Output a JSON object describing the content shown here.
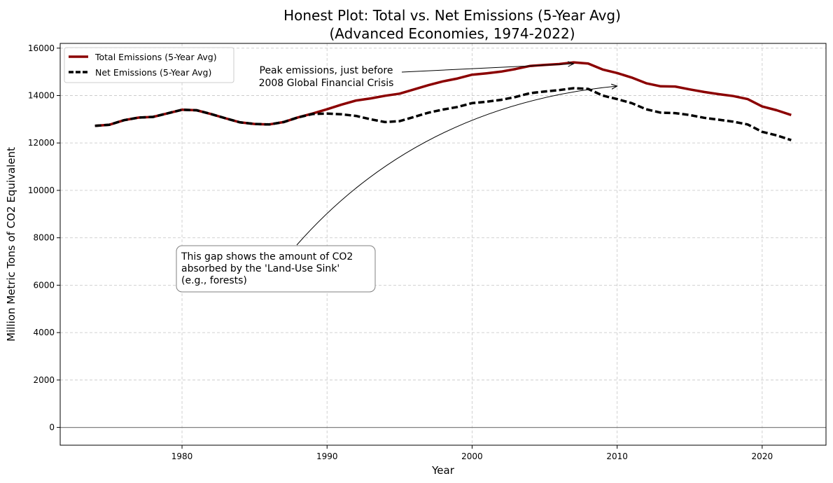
{
  "chart_data": {
    "type": "line",
    "title": [
      "Honest Plot: Total vs. Net Emissions (5-Year Avg)",
      "(Advanced Economies, 1974-2022)"
    ],
    "xlabel": "Year",
    "ylabel": "Million Metric Tons of CO2 Equivalent",
    "xlim": [
      1971.6,
      2024.4
    ],
    "ylim": [
      -750,
      16200
    ],
    "x_ticks": [
      1980,
      1990,
      2000,
      2010,
      2020
    ],
    "y_ticks": [
      0,
      2000,
      4000,
      6000,
      8000,
      10000,
      12000,
      14000,
      16000
    ],
    "grid": true,
    "legend_position": "top-left",
    "x": [
      1974,
      1975,
      1976,
      1977,
      1978,
      1979,
      1980,
      1981,
      1982,
      1983,
      1984,
      1985,
      1986,
      1987,
      1988,
      1989,
      1990,
      1991,
      1992,
      1993,
      1994,
      1995,
      1996,
      1997,
      1998,
      1999,
      2000,
      2001,
      2002,
      2003,
      2004,
      2005,
      2006,
      2007,
      2008,
      2009,
      2010,
      2011,
      2012,
      2013,
      2014,
      2015,
      2016,
      2017,
      2018,
      2019,
      2020,
      2021,
      2022
    ],
    "series": [
      {
        "name": "Total Emissions (5-Year Avg)",
        "color": "#8b0000",
        "style": "solid",
        "values": [
          12720,
          12770,
          12960,
          13070,
          13100,
          13250,
          13400,
          13380,
          13220,
          13040,
          12870,
          12800,
          12780,
          12880,
          13080,
          13240,
          13420,
          13620,
          13790,
          13880,
          13990,
          14080,
          14260,
          14440,
          14600,
          14720,
          14880,
          14940,
          15010,
          15120,
          15250,
          15290,
          15330,
          15400,
          15350,
          15100,
          14950,
          14760,
          14520,
          14390,
          14380,
          14260,
          14150,
          14060,
          13980,
          13850,
          13540,
          13380,
          13180
        ]
      },
      {
        "name": "Net Emissions (5-Year Avg)",
        "color": "#000000",
        "style": "dashed",
        "values": [
          12720,
          12770,
          12960,
          13070,
          13100,
          13250,
          13400,
          13380,
          13220,
          13040,
          12870,
          12800,
          12780,
          12880,
          13080,
          13220,
          13240,
          13210,
          13140,
          13000,
          12880,
          12920,
          13100,
          13280,
          13410,
          13520,
          13680,
          13740,
          13820,
          13940,
          14100,
          14170,
          14230,
          14310,
          14280,
          14000,
          13850,
          13680,
          13420,
          13280,
          13260,
          13180,
          13060,
          12980,
          12900,
          12780,
          12470,
          12320,
          12120
        ]
      }
    ],
    "annotations": [
      {
        "lines": [
          "Peak emissions, just before",
          "2008 Global Financial Crisis"
        ],
        "point": [
          2007,
          15400
        ],
        "text_at": [
          1995.5,
          14700
        ]
      },
      {
        "lines": [
          "This gap shows the amount of CO2",
          "absorbed by the 'Land-Use Sink'",
          "(e.g., forests)"
        ],
        "point": [
          2010,
          14400
        ],
        "text_at": [
          1980,
          6500
        ]
      }
    ]
  }
}
